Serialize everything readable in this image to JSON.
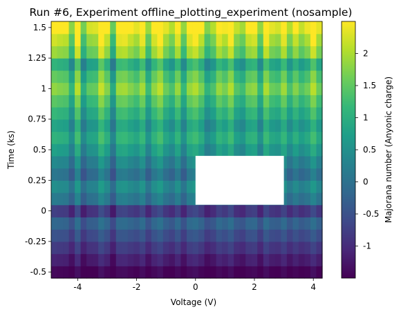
{
  "chart_data": {
    "type": "heatmap",
    "title": "Run #6, Experiment offline_plotting_experiment (nosample)",
    "xlabel": "Voltage (V)",
    "ylabel": "Time (ks)",
    "colorbar_label": "Majorana number (Anyonic charge)",
    "colormap": "viridis",
    "x_range": [
      -4.9,
      4.3
    ],
    "y_range": [
      -0.55,
      1.55
    ],
    "x_ticks": [
      {
        "value": -4,
        "label": "-4"
      },
      {
        "value": -2,
        "label": "-2"
      },
      {
        "value": 0,
        "label": "0"
      },
      {
        "value": 2,
        "label": "2"
      },
      {
        "value": 4,
        "label": "4"
      }
    ],
    "y_ticks": [
      {
        "value": -0.5,
        "label": "-0.5"
      },
      {
        "value": -0.25,
        "label": "-0.25"
      },
      {
        "value": 0,
        "label": "0"
      },
      {
        "value": 0.25,
        "label": "0.25"
      },
      {
        "value": 0.5,
        "label": "0.5"
      },
      {
        "value": 0.75,
        "label": "0.75"
      },
      {
        "value": 1,
        "label": "1"
      },
      {
        "value": 1.25,
        "label": "1.25"
      },
      {
        "value": 1.5,
        "label": "1.5"
      }
    ],
    "color_range": [
      -1.5,
      2.5
    ],
    "colorbar_ticks": [
      {
        "value": -1,
        "label": "-1"
      },
      {
        "value": -0.5,
        "label": "-0.5"
      },
      {
        "value": 0,
        "label": "0"
      },
      {
        "value": 0.5,
        "label": "0.5"
      },
      {
        "value": 1,
        "label": "1"
      },
      {
        "value": 1.5,
        "label": "1.5"
      },
      {
        "value": 2,
        "label": "2"
      }
    ],
    "missing_region": {
      "x": [
        0,
        3
      ],
      "y": [
        0.05,
        0.45
      ]
    },
    "grid": false,
    "x_columns": [
      -4.8,
      -4.6,
      -4.4,
      -4.2,
      -4.0,
      -3.8,
      -3.6,
      -3.4,
      -3.2,
      -3.0,
      -2.8,
      -2.6,
      -2.4,
      -2.2,
      -2.0,
      -1.8,
      -1.6,
      -1.4,
      -1.2,
      -1.0,
      -0.8,
      -0.6,
      -0.4,
      -0.2,
      0.0,
      0.2,
      0.4,
      0.6,
      0.8,
      1.0,
      1.2,
      1.4,
      1.6,
      1.8,
      2.0,
      2.2,
      2.4,
      2.6,
      2.8,
      3.0,
      3.2,
      3.4,
      3.6,
      3.8,
      4.0,
      4.2
    ],
    "y_rows": [
      -0.5,
      -0.4,
      -0.3,
      -0.2,
      -0.1,
      0.0,
      0.1,
      0.2,
      0.3,
      0.4,
      0.5,
      0.6,
      0.7,
      0.8,
      0.9,
      1.0,
      1.1,
      1.2,
      1.3,
      1.4,
      1.5
    ],
    "row_levels": [
      -1.5,
      -1.2,
      -0.9,
      -0.6,
      -0.3,
      -0.9,
      0.0,
      0.3,
      -0.1,
      0.2,
      0.55,
      0.85,
      0.6,
      0.9,
      1.2,
      1.55,
      1.25,
      0.8,
      1.6,
      1.9,
      2.3
    ],
    "column_levels": [
      0.7,
      0.6,
      0.55,
      -0.15,
      1.0,
      -0.3,
      0.3,
      0.35,
      1.1,
      0.6,
      -0.4,
      0.8,
      0.85,
      0.6,
      0.4,
      0.85,
      -0.05,
      0.7,
      1.05,
      0.4,
      0.1,
      0.75,
      -0.1,
      0.75,
      0.95,
      0.55,
      -0.2,
      0.1,
      0.75,
      0.5,
      0.95,
      0.2,
      0.0,
      0.6,
      0.7,
      -0.1,
      0.9,
      0.4,
      0.3,
      0.8,
      0.1,
      0.6,
      0.2,
      0.45,
      1.0,
      0.4
    ]
  }
}
